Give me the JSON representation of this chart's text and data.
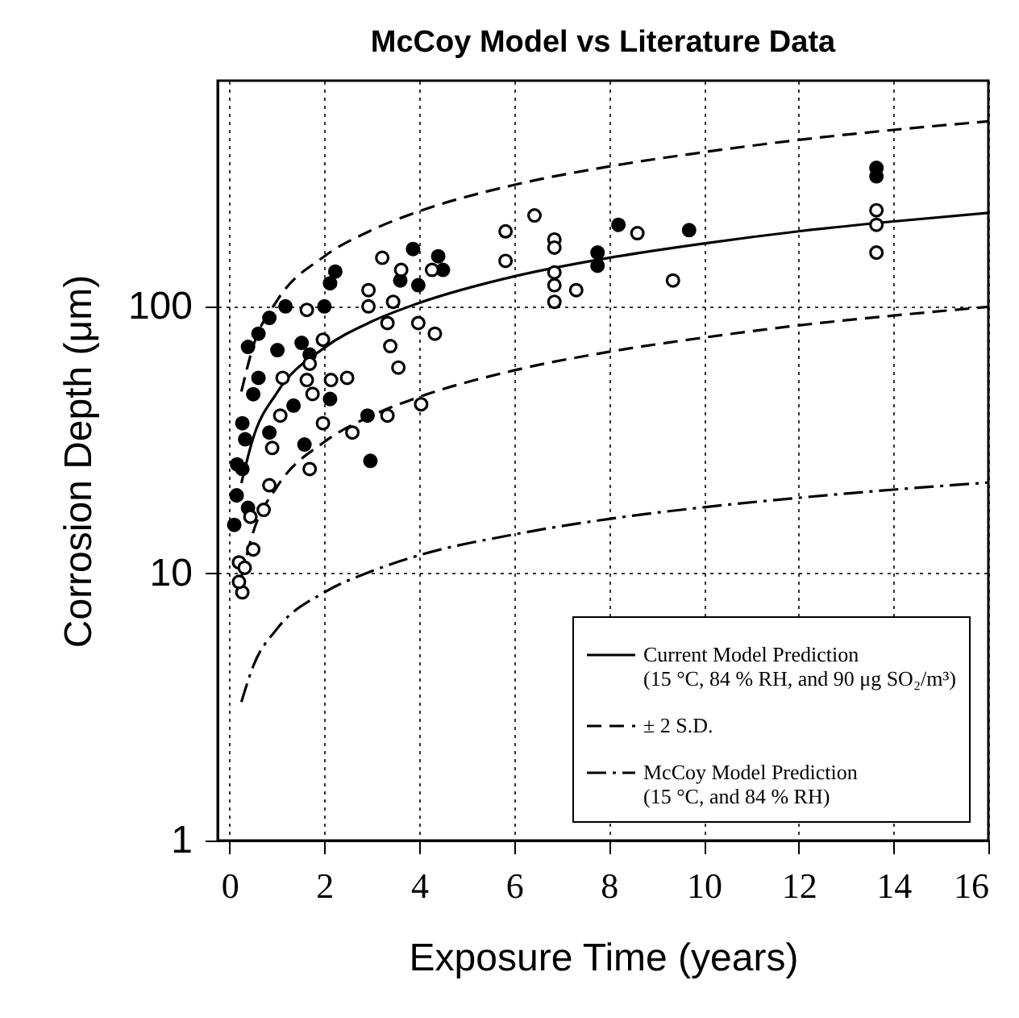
{
  "chart_data": {
    "type": "scatter",
    "title": "McCoy Model vs Literature Data",
    "xlabel": "Exposure Time (years)",
    "ylabel": "Corrosion Depth (μm)",
    "xlim": [
      -0.25,
      16
    ],
    "xticks": [
      0,
      2,
      4,
      6,
      8,
      10,
      12,
      14,
      16
    ],
    "ylim": [
      1,
      700
    ],
    "yticks": [
      1,
      10,
      100
    ],
    "log": "y",
    "grid": true,
    "legend": "bottom right",
    "series": [
      {
        "type": "line",
        "name": "Current Model Prediction\n(15 °C, 84 % RH, and 90 μg SO₂/m³)",
        "color": "#000000",
        "line_style": "solid",
        "x": [
          0.25,
          0.5,
          1,
          2,
          3,
          4,
          6,
          8,
          10,
          12,
          14,
          16
        ],
        "values": [
          21.8,
          32.2,
          47.5,
          70,
          87.8,
          103,
          129.5,
          152,
          172,
          191,
          208,
          224
        ]
      },
      {
        "type": "line",
        "name": "± 2 S.D.",
        "color": "#000000",
        "line_style": "dashed",
        "x": [
          0.25,
          0.5,
          1,
          2,
          3,
          4,
          6,
          8,
          10,
          12,
          14,
          16
        ],
        "values": [
          48,
          71,
          105,
          154,
          193,
          227,
          285,
          334,
          378,
          420,
          458,
          493
        ]
      },
      {
        "type": "line",
        "color": "#000000",
        "line_style": "dashed",
        "x": [
          0.25,
          0.5,
          1,
          2,
          3,
          4,
          6,
          8,
          10,
          12,
          14,
          16
        ],
        "values": [
          9.7,
          14.3,
          21.1,
          31.1,
          39,
          45.8,
          57.6,
          67.6,
          76.4,
          84.9,
          92.4,
          99.6
        ]
      },
      {
        "type": "line",
        "name": "McCoy Model Prediction\n(15 °C, and 84 % RH)",
        "color": "#000000",
        "line_style": "dashdot",
        "x": [
          0.25,
          0.5,
          1,
          2,
          3,
          4,
          6,
          8,
          10,
          12,
          14,
          16
        ],
        "values": [
          3.3,
          4.5,
          6.2,
          8.5,
          10.2,
          11.7,
          14,
          16,
          17.7,
          19.2,
          20.6,
          21.9
        ]
      },
      {
        "color": "#000000",
        "marker": "circle",
        "x": [
          0.1,
          0.15,
          0.27,
          0.33,
          0.27,
          0.5,
          0.61,
          0.39,
          0.61,
          0.84,
          1.01,
          1.35,
          1.58,
          1.18,
          1.52,
          2.12,
          2.23,
          2.0,
          2.12,
          2.91,
          2.97,
          3.87,
          4.4,
          4.5,
          3.98,
          3.6,
          1.69,
          0.39,
          0.16,
          0.84,
          7.76,
          7.76,
          8.2,
          9.69,
          13.64,
          13.64
        ],
        "values": [
          15.2,
          19.6,
          24.6,
          31.8,
          36.5,
          46.9,
          54,
          70.5,
          79,
          90.6,
          68.6,
          42.5,
          30.4,
          100,
          73,
          122,
          135,
          100,
          45,
          39,
          26.4,
          164,
          154,
          137,
          120,
          125,
          66,
          17.6,
          25.6,
          33.7,
          159,
          142,
          202,
          193,
          330,
          307
        ]
      },
      {
        "color": "#ffffff",
        "marker": "circle",
        "x": [
          0.44,
          0.72,
          0.84,
          0.9,
          1.07,
          1.12,
          1.69,
          1.63,
          1.75,
          1.97,
          1.69,
          1.97,
          1.63,
          2.14,
          2.48,
          2.59,
          2.93,
          2.93,
          3.22,
          3.33,
          3.39,
          3.56,
          3.62,
          3.45,
          3.98,
          4.04,
          4.33,
          4.27,
          3.33,
          0.2,
          0.27,
          0.32,
          0.5,
          0.2,
          5.82,
          5.82,
          6.43,
          6.85,
          6.85,
          6.85,
          6.85,
          6.85,
          7.31,
          8.6,
          9.35,
          13.64,
          13.64,
          13.64
        ],
        "values": [
          16.3,
          17.3,
          21.4,
          29.5,
          39,
          54,
          24.6,
          53,
          47,
          36.5,
          61,
          75,
          97,
          53,
          54,
          33.7,
          115,
          100,
          152,
          86.6,
          71,
          59,
          137,
          104,
          86.6,
          43,
          79,
          137,
          39,
          11,
          8.5,
          10.5,
          12.3,
          9.3,
          191,
          148,
          219,
          178,
          166,
          134,
          120,
          104,
          115,
          188,
          125,
          229,
          202,
          159
        ]
      }
    ]
  }
}
